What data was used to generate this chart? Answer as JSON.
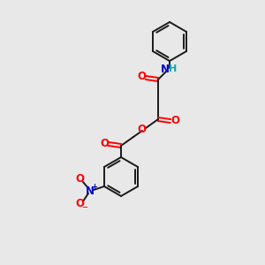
{
  "bg_color": "#e8e8e8",
  "bond_color": "#1a1a1a",
  "bond_width": 1.4,
  "atom_colors": {
    "O": "#ff0000",
    "N": "#0000cc",
    "H": "#00aaaa"
  },
  "font_size": 8.5
}
